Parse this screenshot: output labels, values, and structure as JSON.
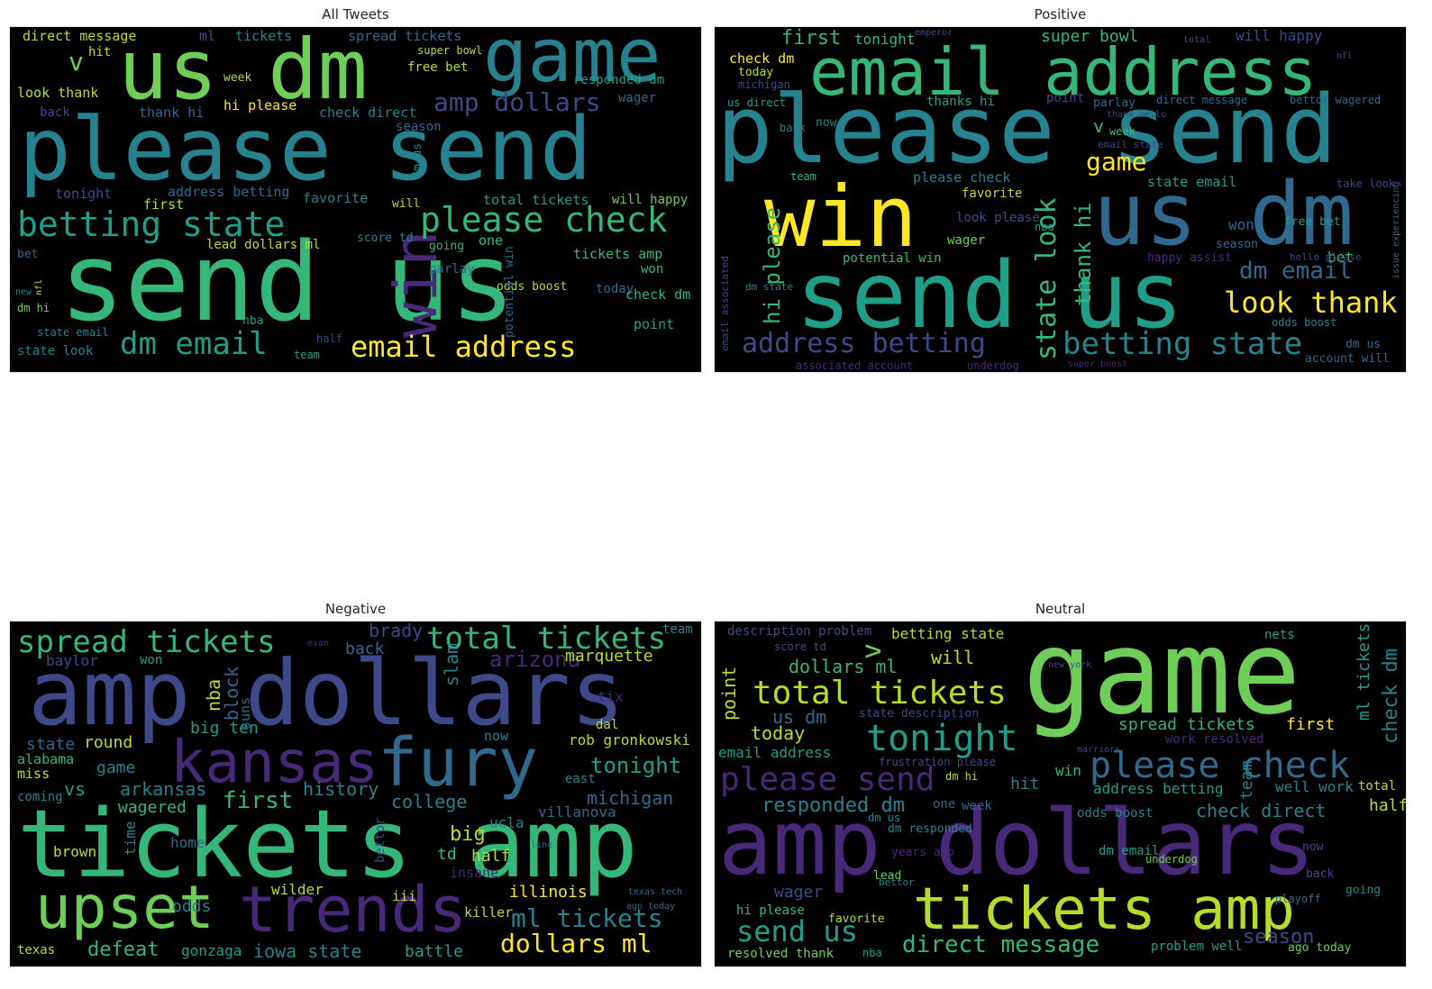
{
  "titles": {
    "all": "All Tweets",
    "positive": "Positive",
    "negative": "Negative",
    "neutral": "Neutral"
  },
  "clouds": {
    "all": [
      "us dm",
      "game",
      "please send",
      "send us",
      "win",
      "betting state",
      "please check",
      "dm email",
      "email address",
      "amp dollars",
      "direct message",
      "spread tickets",
      "tickets",
      "ml",
      "look thank",
      "thank hi",
      "hi please",
      "check direct",
      "free bet",
      "super bowl",
      "responded dm",
      "wager",
      "address betting",
      "total tickets",
      "first",
      "tonight",
      "will happy",
      "favorite",
      "score td",
      "lead dollars ml",
      "going",
      "one",
      "parlay",
      "tickets amp",
      "won",
      "check dm",
      "point",
      "today",
      "state look",
      "dm hi",
      "bet",
      "odds boost",
      "nba",
      "half",
      "team",
      "state email",
      "v",
      "hit",
      "back",
      "season",
      "dm us",
      "will",
      "week",
      "potential win",
      "new",
      "nfl"
    ],
    "positive": [
      "please send",
      "email address",
      "win",
      "send us",
      "us dm",
      "betting state",
      "address betting",
      "look thank",
      "state look",
      "hi please",
      "thank hi",
      "game",
      "dm email",
      "first",
      "tonight",
      "super bowl",
      "will happy",
      "check dm",
      "today",
      "michigan",
      "us direct",
      "thanks hi",
      "point",
      "parlay",
      "direct message",
      "bettor wagered",
      "thank hello",
      "email state",
      "please check",
      "state email",
      "favorite",
      "wager",
      "look please",
      "nba",
      "won",
      "bet",
      "odds boost",
      "potential win",
      "dm state",
      "team",
      "now",
      "back",
      "v",
      "week",
      "free bet",
      "take look",
      "season",
      "happy assist",
      "hello please",
      "dm us",
      "account will",
      "nfl",
      "emperor",
      "total",
      "issue experiencing",
      "associated account",
      "underdog",
      "super boost",
      "email associated"
    ],
    "negative": [
      "amp dollars",
      "tickets amp",
      "kansas",
      "fury",
      "upset",
      "trends",
      "spread tickets",
      "total tickets",
      "arizona",
      "marquette",
      "nba",
      "block",
      "suns",
      "slam",
      "brady",
      "back",
      "baylor",
      "won",
      "big ten",
      "state",
      "round",
      "alabama",
      "miss",
      "game",
      "history",
      "first",
      "college",
      "ucla",
      "michigan",
      "villanova",
      "tonight",
      "rob gronkowski",
      "vs",
      "arkansas",
      "wagered",
      "coming",
      "tix",
      "dal",
      "east",
      "big",
      "td",
      "half",
      "insane",
      "home",
      "brown",
      "wilder",
      "iii",
      "killer",
      "illinois",
      "odds",
      "ml tickets",
      "dollars ml",
      "defeat",
      "gonzaga",
      "iowa state",
      "battle",
      "texas",
      "now",
      "time",
      "bettor",
      "team",
      "texas tech",
      "ago today",
      "line",
      "evan"
    ],
    "neutral": [
      "game",
      "amp dollars",
      "tickets amp",
      "please send",
      "please check",
      "total tickets",
      "tonight",
      "send us",
      "direct message",
      "us dm",
      "dollars ml",
      "betting state",
      "description problem",
      "score td",
      "will",
      "point",
      "today",
      "email address",
      "responded dm",
      "spread tickets",
      "first",
      "work resolved",
      "check dm",
      "ml tickets",
      "team",
      "well work",
      "total",
      "half",
      "address betting",
      "check direct",
      "win",
      "hit",
      "dm hi",
      "week",
      "one",
      "odds boost",
      "dm responded",
      "dm us",
      "years ago",
      "lead",
      "wager",
      "hi please",
      "favorite",
      "resolved thank",
      "nba",
      "bettor",
      "dm email",
      "problem well",
      "season",
      "ago today",
      "now",
      "back",
      "going",
      "playoff",
      "underdog",
      "frustration please",
      "state description",
      "v",
      "nets",
      "new york",
      "marriors"
    ]
  },
  "colors": {
    "yellow": "#fde725",
    "lightgreen": "#b5de2b",
    "green": "#6ece58",
    "teal": "#35b779",
    "bluegreen": "#1f9e89",
    "cyan": "#26828e",
    "blue": "#31688e",
    "indigo": "#3e4989",
    "purple": "#482878",
    "darkpurple": "#440154",
    "background": "#000000"
  }
}
